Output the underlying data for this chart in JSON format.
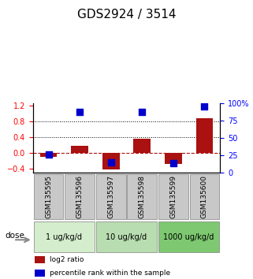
{
  "title": "GDS2924 / 3514",
  "samples": [
    "GSM135595",
    "GSM135596",
    "GSM135597",
    "GSM135598",
    "GSM135599",
    "GSM135600"
  ],
  "log2_ratios": [
    -0.1,
    0.18,
    -0.42,
    0.35,
    -0.28,
    0.87
  ],
  "percentile_ranks": [
    26,
    88,
    15,
    88,
    14,
    96
  ],
  "doses": [
    {
      "label": "1 ug/kg/d",
      "samples": [
        0,
        1
      ],
      "color": "#d4edcc"
    },
    {
      "label": "10 ug/kg/d",
      "samples": [
        2,
        3
      ],
      "color": "#b8ddb0"
    },
    {
      "label": "1000 ug/kg/d",
      "samples": [
        4,
        5
      ],
      "color": "#7dc870"
    }
  ],
  "bar_color": "#aa1111",
  "dot_color": "#0000cc",
  "ylim_left": [
    -0.5,
    1.25
  ],
  "ylim_right": [
    0,
    100
  ],
  "yticks_left": [
    -0.4,
    0.0,
    0.4,
    0.8,
    1.2
  ],
  "yticks_right": [
    0,
    25,
    50,
    75,
    100
  ],
  "hlines": [
    0.8,
    0.4
  ],
  "zero_line": 0.0,
  "bar_width": 0.55,
  "dot_size": 30,
  "legend_items": [
    {
      "color": "#aa1111",
      "label": "log2 ratio"
    },
    {
      "color": "#0000cc",
      "label": "percentile rank within the sample"
    }
  ],
  "dose_label": "dose",
  "sample_label_size": 6.5,
  "title_fontsize": 11,
  "sample_box_color": "#c8c8c8",
  "dose_boundaries": [
    0,
    2,
    4,
    6
  ]
}
